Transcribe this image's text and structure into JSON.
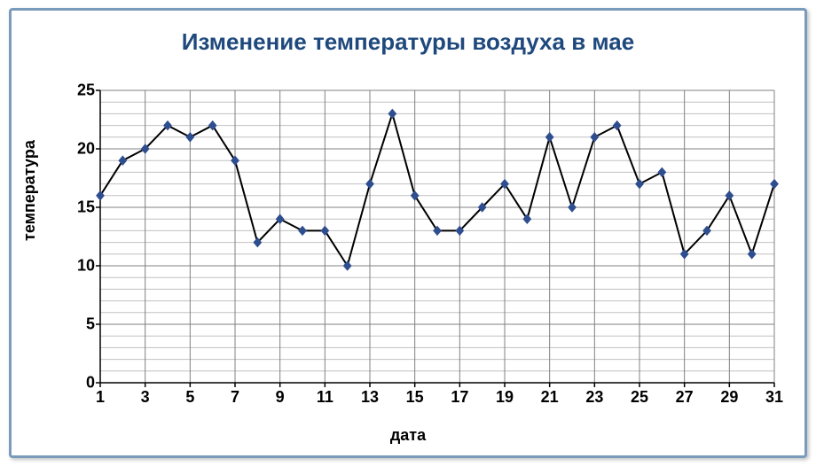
{
  "chart": {
    "type": "line",
    "title": "Изменение температуры воздуха в мае",
    "title_color": "#1f497d",
    "title_fontsize": 26,
    "xlabel": "дата",
    "ylabel": "температура",
    "label_fontsize": 18,
    "label_color": "#000000",
    "tick_fontsize": 18,
    "tick_color": "#000000",
    "background_color": "#ffffff",
    "border_color": "#7b9bbd",
    "grid_color": "#808080",
    "grid_minor_color": "#c0c0c0",
    "axis_color": "#000000",
    "line_color": "#000000",
    "line_width": 2,
    "marker_color": "#2f4e8f",
    "marker_shape": "diamond",
    "marker_size": 10,
    "xlim": [
      1,
      31
    ],
    "ylim": [
      0,
      25
    ],
    "xtick_step": 2,
    "xtick_minor_step": 1,
    "ytick_step": 5,
    "ytick_minor_step": 1,
    "xgrid_major": true,
    "xgrid_minor": false,
    "ygrid_major": true,
    "ygrid_minor": true,
    "x": [
      1,
      2,
      3,
      4,
      5,
      6,
      7,
      8,
      9,
      10,
      11,
      12,
      13,
      14,
      15,
      16,
      17,
      18,
      19,
      20,
      21,
      22,
      23,
      24,
      25,
      26,
      27,
      28,
      29,
      30,
      31
    ],
    "y": [
      16,
      19,
      20,
      22,
      21,
      22,
      19,
      12,
      14,
      13,
      13,
      10,
      17,
      23,
      16,
      13,
      13,
      15,
      17,
      14,
      21,
      15,
      21,
      22,
      17,
      18,
      11,
      13,
      16,
      11,
      17
    ]
  }
}
